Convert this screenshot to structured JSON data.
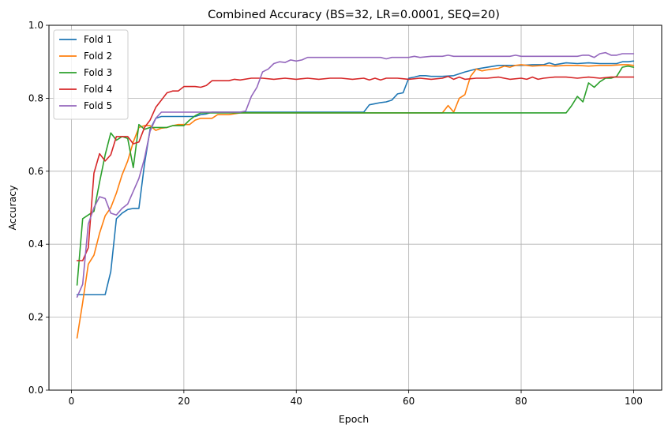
{
  "chart_data": {
    "type": "line",
    "title": "Combined Accuracy (BS=32, LR=0.0001, SEQ=20)",
    "xlabel": "Epoch",
    "ylabel": "Accuracy",
    "xlim": [
      -4,
      105
    ],
    "ylim": [
      0,
      1.0
    ],
    "xticks": [
      0,
      20,
      40,
      60,
      80,
      100
    ],
    "yticks": [
      0.0,
      0.2,
      0.4,
      0.6,
      0.8,
      1.0
    ],
    "xtick_labels": [
      "0",
      "20",
      "40",
      "60",
      "80",
      "100"
    ],
    "ytick_labels": [
      "0.0",
      "0.2",
      "0.4",
      "0.6",
      "0.8",
      "1.0"
    ],
    "grid": true,
    "legend_position": "top-left",
    "series": [
      {
        "name": "Fold 1",
        "color": "#1f77b4",
        "points": [
          [
            1,
            0.262
          ],
          [
            2,
            0.262
          ],
          [
            3,
            0.262
          ],
          [
            4,
            0.262
          ],
          [
            5,
            0.262
          ],
          [
            6,
            0.262
          ],
          [
            7,
            0.325
          ],
          [
            8,
            0.47
          ],
          [
            9,
            0.485
          ],
          [
            10,
            0.495
          ],
          [
            11,
            0.498
          ],
          [
            12,
            0.498
          ],
          [
            13,
            0.62
          ],
          [
            14,
            0.715
          ],
          [
            15,
            0.745
          ],
          [
            16,
            0.75
          ],
          [
            17,
            0.75
          ],
          [
            18,
            0.75
          ],
          [
            19,
            0.75
          ],
          [
            20,
            0.75
          ],
          [
            21,
            0.75
          ],
          [
            22,
            0.75
          ],
          [
            23,
            0.755
          ],
          [
            24,
            0.757
          ],
          [
            25,
            0.762
          ],
          [
            30,
            0.762
          ],
          [
            40,
            0.762
          ],
          [
            52,
            0.762
          ],
          [
            53,
            0.782
          ],
          [
            54,
            0.785
          ],
          [
            55,
            0.788
          ],
          [
            56,
            0.79
          ],
          [
            57,
            0.795
          ],
          [
            58,
            0.812
          ],
          [
            59,
            0.815
          ],
          [
            60,
            0.855
          ],
          [
            61,
            0.858
          ],
          [
            62,
            0.862
          ],
          [
            63,
            0.862
          ],
          [
            64,
            0.86
          ],
          [
            66,
            0.86
          ],
          [
            68,
            0.862
          ],
          [
            70,
            0.872
          ],
          [
            72,
            0.88
          ],
          [
            74,
            0.885
          ],
          [
            76,
            0.89
          ],
          [
            78,
            0.89
          ],
          [
            80,
            0.89
          ],
          [
            82,
            0.892
          ],
          [
            84,
            0.892
          ],
          [
            85,
            0.897
          ],
          [
            86,
            0.892
          ],
          [
            88,
            0.897
          ],
          [
            90,
            0.895
          ],
          [
            92,
            0.897
          ],
          [
            94,
            0.895
          ],
          [
            96,
            0.895
          ],
          [
            97,
            0.895
          ],
          [
            98,
            0.9
          ],
          [
            99,
            0.9
          ],
          [
            100,
            0.902
          ]
        ]
      },
      {
        "name": "Fold 2",
        "color": "#ff7f0e",
        "points": [
          [
            1,
            0.143
          ],
          [
            2,
            0.24
          ],
          [
            3,
            0.345
          ],
          [
            4,
            0.37
          ],
          [
            5,
            0.43
          ],
          [
            6,
            0.478
          ],
          [
            7,
            0.5
          ],
          [
            8,
            0.54
          ],
          [
            9,
            0.59
          ],
          [
            10,
            0.628
          ],
          [
            11,
            0.68
          ],
          [
            12,
            0.72
          ],
          [
            13,
            0.725
          ],
          [
            14,
            0.725
          ],
          [
            15,
            0.712
          ],
          [
            16,
            0.718
          ],
          [
            17,
            0.72
          ],
          [
            18,
            0.725
          ],
          [
            19,
            0.728
          ],
          [
            20,
            0.728
          ],
          [
            21,
            0.728
          ],
          [
            22,
            0.74
          ],
          [
            23,
            0.745
          ],
          [
            24,
            0.745
          ],
          [
            25,
            0.745
          ],
          [
            26,
            0.755
          ],
          [
            28,
            0.755
          ],
          [
            30,
            0.76
          ],
          [
            40,
            0.76
          ],
          [
            50,
            0.76
          ],
          [
            60,
            0.76
          ],
          [
            66,
            0.76
          ],
          [
            67,
            0.78
          ],
          [
            68,
            0.762
          ],
          [
            69,
            0.8
          ],
          [
            70,
            0.81
          ],
          [
            71,
            0.86
          ],
          [
            72,
            0.88
          ],
          [
            73,
            0.875
          ],
          [
            74,
            0.878
          ],
          [
            75,
            0.88
          ],
          [
            76,
            0.882
          ],
          [
            77,
            0.888
          ],
          [
            78,
            0.885
          ],
          [
            79,
            0.89
          ],
          [
            80,
            0.892
          ],
          [
            82,
            0.888
          ],
          [
            84,
            0.89
          ],
          [
            86,
            0.888
          ],
          [
            88,
            0.89
          ],
          [
            90,
            0.89
          ],
          [
            92,
            0.888
          ],
          [
            94,
            0.89
          ],
          [
            96,
            0.89
          ],
          [
            98,
            0.892
          ],
          [
            99,
            0.892
          ],
          [
            100,
            0.89
          ]
        ]
      },
      {
        "name": "Fold 3",
        "color": "#2ca02c",
        "points": [
          [
            1,
            0.288
          ],
          [
            2,
            0.47
          ],
          [
            3,
            0.48
          ],
          [
            4,
            0.49
          ],
          [
            5,
            0.57
          ],
          [
            6,
            0.645
          ],
          [
            7,
            0.705
          ],
          [
            8,
            0.685
          ],
          [
            9,
            0.695
          ],
          [
            10,
            0.69
          ],
          [
            11,
            0.61
          ],
          [
            12,
            0.728
          ],
          [
            13,
            0.715
          ],
          [
            14,
            0.72
          ],
          [
            15,
            0.72
          ],
          [
            16,
            0.72
          ],
          [
            17,
            0.72
          ],
          [
            18,
            0.725
          ],
          [
            19,
            0.725
          ],
          [
            20,
            0.725
          ],
          [
            21,
            0.74
          ],
          [
            22,
            0.752
          ],
          [
            23,
            0.76
          ],
          [
            25,
            0.76
          ],
          [
            30,
            0.76
          ],
          [
            40,
            0.76
          ],
          [
            50,
            0.76
          ],
          [
            60,
            0.76
          ],
          [
            70,
            0.76
          ],
          [
            80,
            0.76
          ],
          [
            88,
            0.76
          ],
          [
            89,
            0.78
          ],
          [
            90,
            0.805
          ],
          [
            91,
            0.79
          ],
          [
            92,
            0.842
          ],
          [
            93,
            0.83
          ],
          [
            94,
            0.845
          ],
          [
            95,
            0.855
          ],
          [
            96,
            0.855
          ],
          [
            97,
            0.86
          ],
          [
            98,
            0.885
          ],
          [
            99,
            0.888
          ],
          [
            100,
            0.885
          ]
        ]
      },
      {
        "name": "Fold 4",
        "color": "#d62728",
        "points": [
          [
            1,
            0.355
          ],
          [
            2,
            0.355
          ],
          [
            3,
            0.39
          ],
          [
            4,
            0.595
          ],
          [
            5,
            0.648
          ],
          [
            6,
            0.628
          ],
          [
            7,
            0.645
          ],
          [
            8,
            0.695
          ],
          [
            9,
            0.695
          ],
          [
            10,
            0.695
          ],
          [
            11,
            0.675
          ],
          [
            12,
            0.68
          ],
          [
            13,
            0.72
          ],
          [
            14,
            0.74
          ],
          [
            15,
            0.775
          ],
          [
            16,
            0.795
          ],
          [
            17,
            0.815
          ],
          [
            18,
            0.82
          ],
          [
            19,
            0.82
          ],
          [
            20,
            0.832
          ],
          [
            21,
            0.832
          ],
          [
            22,
            0.832
          ],
          [
            23,
            0.83
          ],
          [
            24,
            0.835
          ],
          [
            25,
            0.848
          ],
          [
            26,
            0.848
          ],
          [
            28,
            0.848
          ],
          [
            29,
            0.852
          ],
          [
            30,
            0.85
          ],
          [
            32,
            0.855
          ],
          [
            34,
            0.855
          ],
          [
            36,
            0.852
          ],
          [
            38,
            0.855
          ],
          [
            40,
            0.852
          ],
          [
            42,
            0.855
          ],
          [
            44,
            0.852
          ],
          [
            46,
            0.855
          ],
          [
            48,
            0.855
          ],
          [
            50,
            0.852
          ],
          [
            52,
            0.855
          ],
          [
            53,
            0.85
          ],
          [
            54,
            0.855
          ],
          [
            55,
            0.85
          ],
          [
            56,
            0.855
          ],
          [
            58,
            0.855
          ],
          [
            60,
            0.852
          ],
          [
            62,
            0.855
          ],
          [
            64,
            0.852
          ],
          [
            66,
            0.855
          ],
          [
            67,
            0.86
          ],
          [
            68,
            0.852
          ],
          [
            69,
            0.858
          ],
          [
            70,
            0.852
          ],
          [
            72,
            0.855
          ],
          [
            74,
            0.855
          ],
          [
            76,
            0.858
          ],
          [
            78,
            0.852
          ],
          [
            80,
            0.855
          ],
          [
            81,
            0.852
          ],
          [
            82,
            0.858
          ],
          [
            83,
            0.852
          ],
          [
            84,
            0.855
          ],
          [
            86,
            0.858
          ],
          [
            88,
            0.858
          ],
          [
            90,
            0.855
          ],
          [
            92,
            0.858
          ],
          [
            94,
            0.855
          ],
          [
            96,
            0.858
          ],
          [
            98,
            0.858
          ],
          [
            100,
            0.858
          ]
        ]
      },
      {
        "name": "Fold 5",
        "color": "#9467bd",
        "points": [
          [
            1,
            0.255
          ],
          [
            2,
            0.29
          ],
          [
            3,
            0.455
          ],
          [
            4,
            0.5
          ],
          [
            5,
            0.53
          ],
          [
            6,
            0.525
          ],
          [
            7,
            0.485
          ],
          [
            8,
            0.48
          ],
          [
            9,
            0.498
          ],
          [
            10,
            0.51
          ],
          [
            11,
            0.545
          ],
          [
            12,
            0.58
          ],
          [
            13,
            0.635
          ],
          [
            14,
            0.71
          ],
          [
            15,
            0.745
          ],
          [
            16,
            0.762
          ],
          [
            18,
            0.762
          ],
          [
            20,
            0.762
          ],
          [
            25,
            0.762
          ],
          [
            30,
            0.762
          ],
          [
            31,
            0.765
          ],
          [
            32,
            0.805
          ],
          [
            33,
            0.83
          ],
          [
            34,
            0.872
          ],
          [
            35,
            0.88
          ],
          [
            36,
            0.895
          ],
          [
            37,
            0.9
          ],
          [
            38,
            0.898
          ],
          [
            39,
            0.905
          ],
          [
            40,
            0.902
          ],
          [
            41,
            0.905
          ],
          [
            42,
            0.912
          ],
          [
            44,
            0.912
          ],
          [
            46,
            0.912
          ],
          [
            50,
            0.912
          ],
          [
            55,
            0.912
          ],
          [
            56,
            0.908
          ],
          [
            57,
            0.912
          ],
          [
            58,
            0.912
          ],
          [
            60,
            0.912
          ],
          [
            61,
            0.915
          ],
          [
            62,
            0.912
          ],
          [
            64,
            0.915
          ],
          [
            66,
            0.915
          ],
          [
            67,
            0.918
          ],
          [
            68,
            0.915
          ],
          [
            70,
            0.915
          ],
          [
            72,
            0.915
          ],
          [
            74,
            0.915
          ],
          [
            76,
            0.915
          ],
          [
            78,
            0.915
          ],
          [
            79,
            0.918
          ],
          [
            80,
            0.915
          ],
          [
            84,
            0.915
          ],
          [
            88,
            0.915
          ],
          [
            90,
            0.915
          ],
          [
            91,
            0.918
          ],
          [
            92,
            0.918
          ],
          [
            93,
            0.912
          ],
          [
            94,
            0.922
          ],
          [
            95,
            0.925
          ],
          [
            96,
            0.918
          ],
          [
            97,
            0.918
          ],
          [
            98,
            0.922
          ],
          [
            100,
            0.922
          ]
        ]
      }
    ]
  }
}
